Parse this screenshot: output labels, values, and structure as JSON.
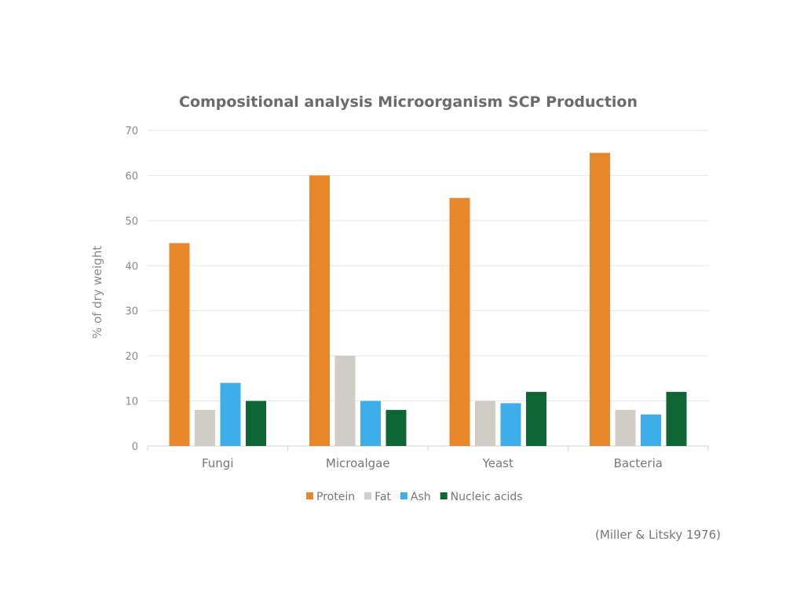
{
  "chart_data": {
    "type": "bar",
    "title": "Compositional analysis Microorganism SCP Production",
    "xlabel": "",
    "ylabel": "% of dry weight",
    "ylim": [
      0,
      70
    ],
    "yticks": [
      0,
      10,
      20,
      30,
      40,
      50,
      60,
      70
    ],
    "grid": true,
    "legend_position": "bottom",
    "categories": [
      "Fungi",
      "Microalgae",
      "Yeast",
      "Bacteria"
    ],
    "series": [
      {
        "name": "Protein",
        "color": "#E8872A",
        "values": [
          45,
          60,
          55,
          65
        ]
      },
      {
        "name": "Fat",
        "color": "#D0CCC6",
        "values": [
          8,
          20,
          10,
          8
        ]
      },
      {
        "name": "Ash",
        "color": "#3DAEE9",
        "values": [
          14,
          10,
          9.5,
          7
        ]
      },
      {
        "name": "Nucleic acids",
        "color": "#0E6634",
        "values": [
          10,
          8,
          12,
          12
        ]
      }
    ],
    "source_note": "(Miller & Litsky 1976)"
  }
}
